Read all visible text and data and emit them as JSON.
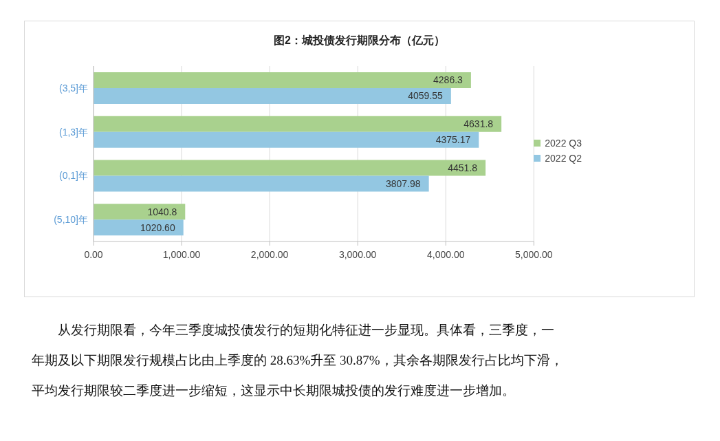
{
  "chart_data": {
    "type": "bar",
    "orientation": "horizontal",
    "title": "图2：城投债发行期限分布（亿元）",
    "categories": [
      "(3,5]年",
      "(1,3]年",
      "(0,1]年",
      "(5,10]年"
    ],
    "series": [
      {
        "name": "2022 Q3",
        "color": "#a9d18e",
        "values": [
          4286.3,
          4631.8,
          4451.8,
          1040.8
        ],
        "value_labels": [
          "4286.3",
          "4631.8",
          "4451.8",
          "1040.8"
        ]
      },
      {
        "name": "2022 Q2",
        "color": "#93c7e2",
        "values": [
          4059.55,
          4375.17,
          3807.98,
          1020.6
        ],
        "value_labels": [
          "4059.55",
          "4375.17",
          "3807.98",
          "1020.60"
        ]
      }
    ],
    "xlim": [
      0,
      5000
    ],
    "xticks": [
      {
        "value": 0,
        "label": "0.00"
      },
      {
        "value": 1000,
        "label": "1,000.00"
      },
      {
        "value": 2000,
        "label": "2,000.00"
      },
      {
        "value": 3000,
        "label": "3,000.00"
      },
      {
        "value": 4000,
        "label": "4,000.00"
      },
      {
        "value": 5000,
        "label": "5,000.00"
      }
    ],
    "grid": "x",
    "legend": "right",
    "annotations": [
      "从发行期限看，今年三季度城投债发行的短期化特征进一步显现。具体看，三季度，一",
      "年期及以下期限发行规模占比由上季度的 28.63%升至 30.87%，其余各期限发行占比均下滑，",
      "平均发行期限较二季度进一步缩短，这显示中长期限城投债的发行难度进一步增加。"
    ]
  }
}
